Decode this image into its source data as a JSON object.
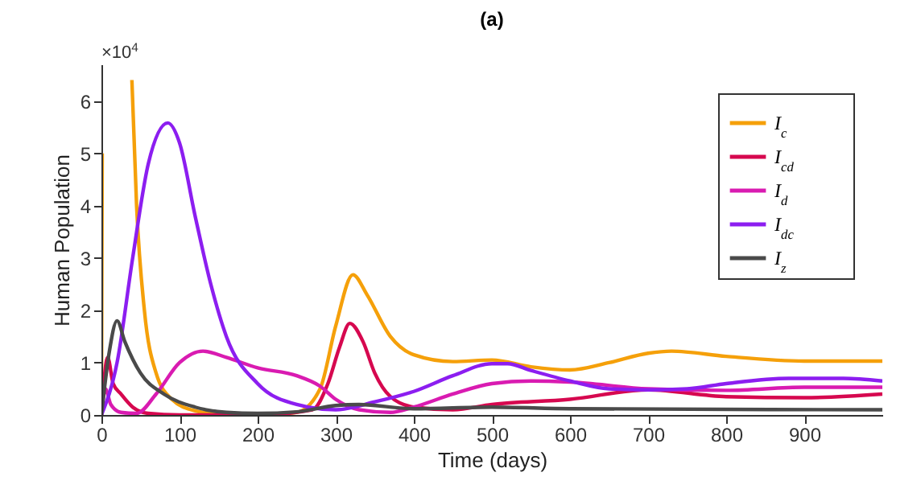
{
  "chart_data": {
    "type": "line",
    "title": "(a)",
    "xlabel": "Time (days)",
    "ylabel": "Human Population",
    "annotations": [
      "×10$^{4}$"
    ],
    "xlim": [
      0,
      1000
    ],
    "xticks": [
      0,
      100,
      200,
      300,
      400,
      500,
      600,
      700,
      800,
      900
    ],
    "ylim": [
      0,
      6.7
    ],
    "yticks": [
      0,
      1,
      2,
      3,
      4,
      5,
      6
    ],
    "legend": "top right",
    "grid": false,
    "line_style": "solid",
    "series": [
      {
        "name": "I$_{c}$",
        "color": "#f5a00a",
        "x": [
          0,
          1,
          2,
          39,
          45,
          55,
          70,
          90,
          120,
          150,
          200,
          250,
          280,
          300,
          322,
          340,
          370,
          400,
          450,
          500,
          550,
          600,
          650,
          700,
          730,
          800,
          900,
          1000
        ],
        "values": [
          0,
          5,
          null,
          6.4,
          4,
          2,
          0.8,
          0.3,
          0.08,
          0.02,
          0,
          0.05,
          0.5,
          1.7,
          2.68,
          2.3,
          1.5,
          1.15,
          1.02,
          1.05,
          0.92,
          0.86,
          1,
          1.18,
          1.22,
          1.12,
          1.03,
          1.03
        ]
      },
      {
        "name": "I$_{cd}$",
        "color": "#d6084f",
        "x": [
          0,
          8,
          15,
          25,
          40,
          60,
          100,
          200,
          270,
          290,
          305,
          318,
          335,
          350,
          370,
          400,
          450,
          500,
          600,
          700,
          800,
          900,
          1000
        ],
        "values": [
          0,
          1.1,
          0.6,
          0.4,
          0.15,
          0.03,
          0,
          0,
          0.1,
          0.6,
          1.3,
          1.75,
          1.4,
          0.8,
          0.35,
          0.15,
          0.1,
          0.2,
          0.3,
          0.48,
          0.35,
          0.33,
          0.4
        ]
      },
      {
        "name": "I$_{d}$",
        "color": "#d91bb1",
        "x": [
          0,
          5,
          12,
          25,
          45,
          70,
          100,
          130,
          160,
          200,
          250,
          280,
          300,
          330,
          370,
          400,
          450,
          500,
          550,
          600,
          700,
          800,
          900,
          1000
        ],
        "values": [
          0,
          0.5,
          0.2,
          0.05,
          0.03,
          0.4,
          1,
          1.22,
          1.1,
          0.9,
          0.75,
          0.55,
          0.3,
          0.1,
          0.05,
          0.15,
          0.4,
          0.6,
          0.65,
          0.63,
          0.5,
          0.47,
          0.53,
          0.53
        ]
      },
      {
        "name": "I$_{dc}$",
        "color": "#8c1ef0",
        "x": [
          0,
          20,
          40,
          60,
          85,
          100,
          120,
          140,
          160,
          200,
          250,
          300,
          350,
          400,
          450,
          500,
          520,
          550,
          600,
          650,
          700,
          750,
          800,
          880,
          950,
          1000
        ],
        "values": [
          0,
          1,
          3,
          4.8,
          5.58,
          5.2,
          3.8,
          2.5,
          1.5,
          0.6,
          0.2,
          0.1,
          0.25,
          0.45,
          0.75,
          0.98,
          0.98,
          0.85,
          0.65,
          0.5,
          0.48,
          0.5,
          0.6,
          0.7,
          0.7,
          0.65
        ]
      },
      {
        "name": "I$_{z}$",
        "color": "#4a4a4a",
        "x": [
          0,
          10,
          20,
          30,
          50,
          80,
          120,
          160,
          200,
          250,
          300,
          330,
          400,
          500,
          600,
          1000
        ],
        "values": [
          0,
          1.2,
          1.8,
          1.4,
          0.8,
          0.4,
          0.15,
          0.05,
          0.03,
          0.06,
          0.18,
          0.2,
          0.12,
          0.15,
          0.12,
          0.1
        ]
      }
    ]
  }
}
